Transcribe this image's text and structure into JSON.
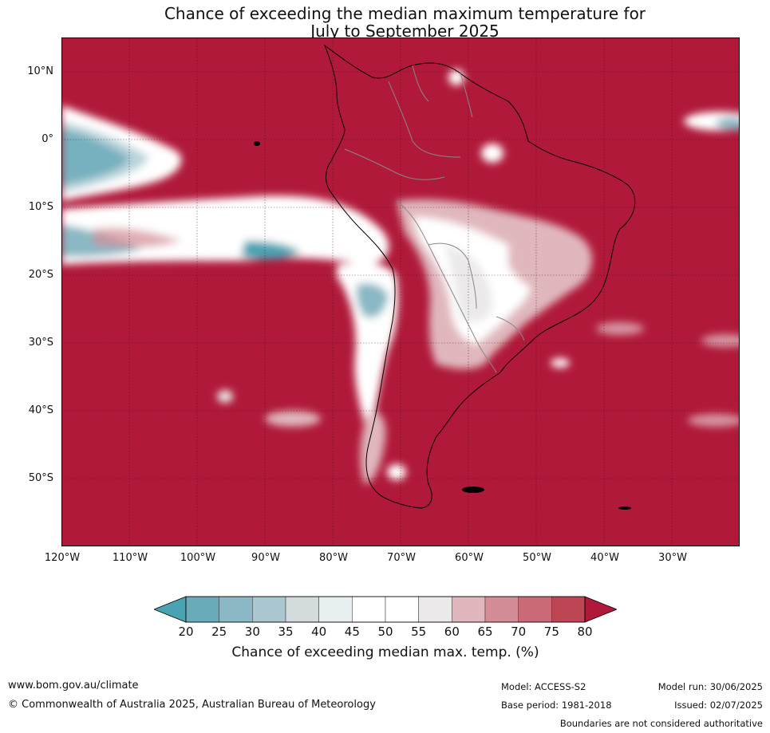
{
  "title": {
    "line1": "Chance of exceeding the median maximum temperature for",
    "line2": "July to September 2025"
  },
  "map": {
    "region": "South America and surrounding oceans",
    "dominant_category": "80%+ (dark red)",
    "lat_labels": [
      "10°N",
      "0°",
      "10°S",
      "20°S",
      "30°S",
      "40°S",
      "50°S"
    ],
    "lon_labels": [
      "120°W",
      "110°W",
      "100°W",
      "90°W",
      "80°W",
      "70°W",
      "60°W",
      "50°W",
      "40°W",
      "30°W"
    ]
  },
  "colorbar": {
    "ticks": [
      "20",
      "25",
      "30",
      "35",
      "40",
      "45",
      "50",
      "55",
      "60",
      "65",
      "70",
      "75",
      "80"
    ],
    "colors": [
      "#4aa3b2",
      "#6aabba",
      "#8ab8c4",
      "#aac6ce",
      "#d3dbdc",
      "#e8eff1",
      "#ffffff",
      "#ffffff",
      "#ebe9ea",
      "#e0b7bd",
      "#d48c96",
      "#c96a76",
      "#be4654",
      "#b0193a"
    ],
    "label": "Chance of exceeding median max. temp. (%)"
  },
  "footer": {
    "website": "www.bom.gov.au/climate",
    "copyright": "© Commonwealth of Australia 2025, Australian Bureau of Meteorology",
    "model": "Model: ACCESS-S2",
    "base_period": "Base period: 1981-2018",
    "model_run": "Model run: 30/06/2025",
    "issued": "Issued: 02/07/2025",
    "disclaimer": "Boundaries are not considered authoritative"
  }
}
